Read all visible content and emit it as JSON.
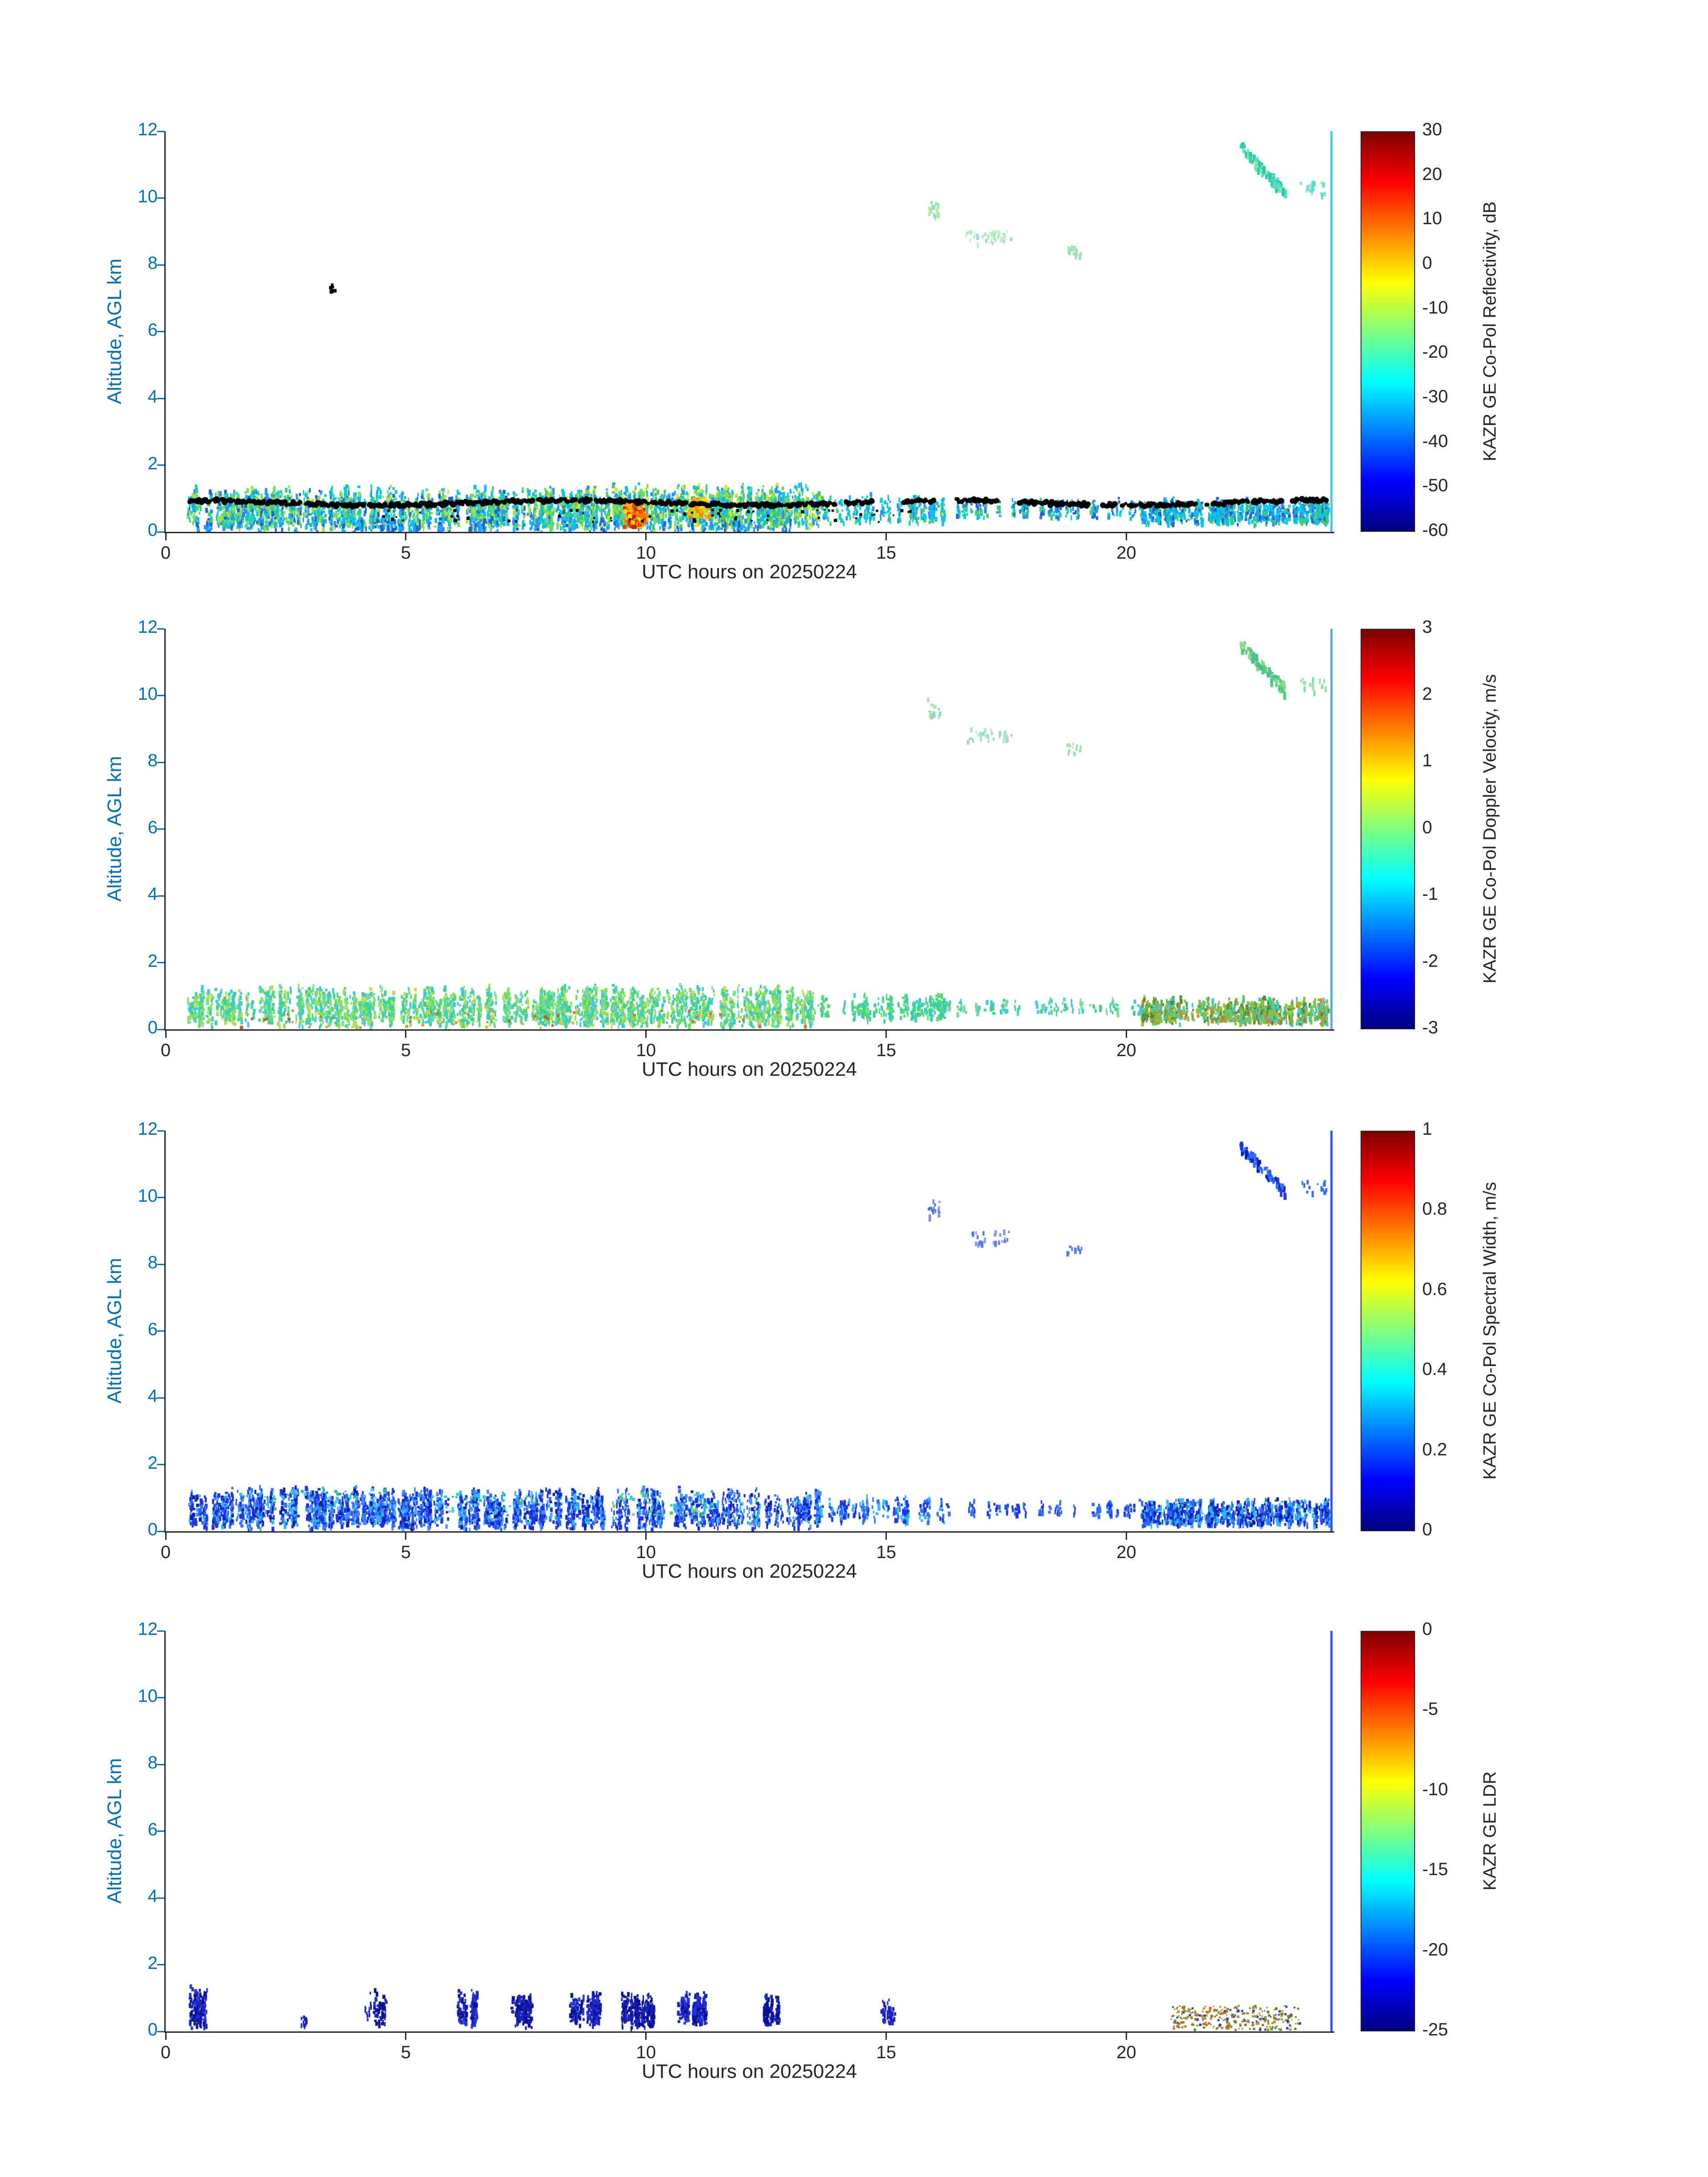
{
  "figure": {
    "background": "#ffffff",
    "axis_text_color": "#262626",
    "y_axis_color": "#0072bd",
    "colormap_stops": [
      "#7f0000 0%",
      "#ff0000 12.5%",
      "#ffff00 37.5%",
      "#00ffff 62.5%",
      "#0000ff 87.5%",
      "#00007f 100%"
    ]
  },
  "chart_data": [
    {
      "type": "heatmap",
      "colorbar_label": "KAZR GE Co-Pol Reflectivity, dB",
      "colorbar_ticks": [
        "30",
        "20",
        "10",
        "0",
        "-10",
        "-20",
        "-30",
        "-40",
        "-50",
        "-60"
      ],
      "clim": [
        -60,
        30
      ],
      "xlabel": "UTC hours on 20250224",
      "ylabel": "Altitude, AGL km",
      "xlim": [
        0,
        24.3
      ],
      "ylim": [
        0,
        12
      ],
      "x_ticks": [
        0,
        5,
        10,
        15,
        20
      ],
      "y_ticks": [
        0,
        2,
        4,
        6,
        8,
        10,
        12
      ],
      "features": [
        {
          "kind": "columns",
          "t": [
            0.45,
            8.3
          ],
          "alt": [
            0.12,
            1.45
          ],
          "count": 240,
          "colors": [
            "#00d0d0",
            "#3fcf6e",
            "#7fdd3f",
            "#2b8cff",
            "#1f5fd0",
            "#00bfff",
            "#57d98f",
            "#a8e03a"
          ]
        },
        {
          "kind": "columns",
          "t": [
            8.3,
            13.6
          ],
          "alt": [
            0.12,
            1.5
          ],
          "count": 200,
          "colors": [
            "#00d0d0",
            "#44cc55",
            "#88dd33",
            "#dde822",
            "#2b8cff",
            "#00bfff",
            "#57d98f"
          ]
        },
        {
          "kind": "speckle",
          "t": [
            9.5,
            9.95
          ],
          "alt": [
            0.2,
            0.95
          ],
          "count": 110,
          "size": 7,
          "colors": [
            "#ffb000",
            "#ff7700",
            "#ffdd00",
            "#ff3b00",
            "#c22800"
          ]
        },
        {
          "kind": "speckle",
          "t": [
            10.85,
            11.3
          ],
          "alt": [
            0.45,
            1.05
          ],
          "count": 80,
          "size": 7,
          "colors": [
            "#ffdd00",
            "#ffb000",
            "#aadd22",
            "#ff8800"
          ]
        },
        {
          "kind": "columns",
          "t": [
            13.6,
            16.2
          ],
          "alt": [
            0.3,
            1.2
          ],
          "count": 50,
          "colors": [
            "#00d0d0",
            "#3fcf6e",
            "#2b8cff",
            "#00bfff"
          ]
        },
        {
          "kind": "columns",
          "t": [
            16.2,
            20.3
          ],
          "alt": [
            0.45,
            1.05
          ],
          "count": 55,
          "colors": [
            "#00d0d0",
            "#2b8cff",
            "#3fcf6e",
            "#1f5fd0"
          ]
        },
        {
          "kind": "columns",
          "t": [
            20.3,
            24.2
          ],
          "alt": [
            0.25,
            1.1
          ],
          "count": 160,
          "colors": [
            "#2b8cff",
            "#00bfff",
            "#00d0d0",
            "#1f5fd0",
            "#3fcf6e"
          ]
        },
        {
          "kind": "columns",
          "t": [
            0.5,
            13.5
          ],
          "alt": [
            0.02,
            0.5
          ],
          "count": 90,
          "colors": [
            "#2b8cff",
            "#1f5fd0",
            "#00bfff"
          ]
        },
        {
          "kind": "speckle",
          "t": [
            4.5,
            16.5
          ],
          "alt": [
            0.3,
            0.7
          ],
          "count": 60,
          "size": 5,
          "colors": [
            "#000000"
          ]
        },
        {
          "kind": "speckle",
          "t": [
            3.38,
            3.52
          ],
          "alt": [
            7.2,
            7.55
          ],
          "count": 6,
          "size": 6,
          "colors": [
            "#000000"
          ]
        },
        {
          "kind": "dotline",
          "t": [
            0.5,
            24.2
          ],
          "base": 0.87,
          "amp": 0.07,
          "jitter": 0.05,
          "r": 5,
          "color": "#000000",
          "gaps": [
            [
              13.95,
              14.15
            ],
            [
              14.75,
              15.35
            ],
            [
              16.05,
              16.45
            ],
            [
              17.35,
              17.75
            ],
            [
              19.25,
              19.5
            ],
            [
              21.45,
              21.65
            ],
            [
              23.25,
              23.45
            ]
          ]
        },
        {
          "kind": "streak",
          "t": [
            15.85,
            16.1
          ],
          "alt": [
            9.4,
            9.95
          ],
          "count": 22,
          "size": 4,
          "colors": [
            "#7fe0c0",
            "#a8e8a0"
          ]
        },
        {
          "kind": "streak",
          "t": [
            16.65,
            17.6
          ],
          "alt": [
            8.65,
            9.05
          ],
          "count": 40,
          "size": 4,
          "colors": [
            "#aee8b8",
            "#8fd8d8",
            "#bfeec8"
          ]
        },
        {
          "kind": "streak",
          "t": [
            18.75,
            19.05
          ],
          "alt": [
            8.3,
            8.6
          ],
          "count": 16,
          "size": 4,
          "colors": [
            "#9fe0b8"
          ]
        },
        {
          "kind": "streak",
          "t": [
            22.35,
            23.3
          ],
          "alt": [
            10.2,
            11.6
          ],
          "count": 90,
          "size": 5,
          "diag": true,
          "colors": [
            "#27c9a8",
            "#55ddcc",
            "#7fe8b0",
            "#3fcf9e"
          ]
        },
        {
          "kind": "streak",
          "t": [
            23.6,
            24.15
          ],
          "alt": [
            10.15,
            10.55
          ],
          "count": 22,
          "size": 4,
          "colors": [
            "#55ddcc",
            "#88e8c8"
          ]
        },
        {
          "kind": "vline",
          "t": 24.27,
          "alt": [
            0,
            12
          ],
          "w": 5,
          "color": "#3fc8e8"
        }
      ]
    },
    {
      "type": "heatmap",
      "colorbar_label": "KAZR GE Co-Pol Doppler Velocity, m/s",
      "colorbar_ticks": [
        "3",
        "2",
        "1",
        "0",
        "-1",
        "-2",
        "-3"
      ],
      "clim": [
        -3,
        3
      ],
      "xlabel": "UTC hours on 20250224",
      "ylabel": "Altitude, AGL km",
      "xlim": [
        0,
        24.3
      ],
      "ylim": [
        0,
        12
      ],
      "x_ticks": [
        0,
        5,
        10,
        15,
        20
      ],
      "y_ticks": [
        0,
        2,
        4,
        6,
        8,
        10,
        12
      ],
      "features": [
        {
          "kind": "columns",
          "t": [
            0.45,
            13.6
          ],
          "alt": [
            0.1,
            1.4
          ],
          "count": 340,
          "colors": [
            "#3ecf8e",
            "#2fd0c0",
            "#55dd66",
            "#88e055",
            "#44c8e0",
            "#77dd99",
            "#b8e04e"
          ]
        },
        {
          "kind": "speckle",
          "t": [
            1.5,
            13.5
          ],
          "alt": [
            0.08,
            0.6
          ],
          "count": 70,
          "size": 5,
          "colors": [
            "#e0a030",
            "#cc7722",
            "#d8c830",
            "#b86018"
          ]
        },
        {
          "kind": "columns",
          "t": [
            13.6,
            16.2
          ],
          "alt": [
            0.3,
            1.15
          ],
          "count": 45,
          "colors": [
            "#3ecf8e",
            "#55dd66",
            "#2fd0c0"
          ]
        },
        {
          "kind": "columns",
          "t": [
            16.2,
            20.3
          ],
          "alt": [
            0.5,
            1.0
          ],
          "count": 40,
          "colors": [
            "#3ecf8e",
            "#77dd99",
            "#44c8e0"
          ]
        },
        {
          "kind": "columns",
          "t": [
            20.3,
            24.2
          ],
          "alt": [
            0.2,
            1.05
          ],
          "count": 170,
          "colors": [
            "#55aa44",
            "#77cc44",
            "#3ecf8e",
            "#99bb33",
            "#558833",
            "#cc8833",
            "#44c8e0"
          ]
        },
        {
          "kind": "streak",
          "t": [
            15.85,
            16.1
          ],
          "alt": [
            9.4,
            9.95
          ],
          "count": 18,
          "size": 4,
          "colors": [
            "#8fd8b8",
            "#a8e8a0"
          ]
        },
        {
          "kind": "streak",
          "t": [
            16.65,
            17.6
          ],
          "alt": [
            8.65,
            9.05
          ],
          "count": 30,
          "size": 4,
          "colors": [
            "#aee8b8",
            "#9fd8c8"
          ]
        },
        {
          "kind": "streak",
          "t": [
            18.75,
            19.05
          ],
          "alt": [
            8.3,
            8.6
          ],
          "count": 12,
          "size": 4,
          "colors": [
            "#9fe0a8"
          ]
        },
        {
          "kind": "streak",
          "t": [
            22.35,
            23.3
          ],
          "alt": [
            10.2,
            11.6
          ],
          "count": 80,
          "size": 5,
          "diag": true,
          "colors": [
            "#55cc77",
            "#88dd88",
            "#44bb99"
          ]
        },
        {
          "kind": "streak",
          "t": [
            23.6,
            24.15
          ],
          "alt": [
            10.15,
            10.55
          ],
          "count": 18,
          "size": 4,
          "colors": [
            "#77dd99",
            "#99e8a8"
          ]
        },
        {
          "kind": "vline",
          "t": 24.27,
          "alt": [
            0,
            12
          ],
          "w": 5,
          "color": "#55aadd"
        }
      ]
    },
    {
      "type": "heatmap",
      "colorbar_label": "KAZR GE Co-Pol Spectral Width, m/s",
      "colorbar_ticks": [
        "1",
        "0.8",
        "0.6",
        "0.4",
        "0.2",
        "0"
      ],
      "clim": [
        0,
        1
      ],
      "xlabel": "UTC hours on 20250224",
      "ylabel": "Altitude, AGL km",
      "xlim": [
        0,
        24.3
      ],
      "ylim": [
        0,
        12
      ],
      "x_ticks": [
        0,
        5,
        10,
        15,
        20
      ],
      "y_ticks": [
        0,
        2,
        4,
        6,
        8,
        10,
        12
      ],
      "features": [
        {
          "kind": "columns",
          "t": [
            0.45,
            13.6
          ],
          "alt": [
            0.1,
            1.4
          ],
          "count": 330,
          "colors": [
            "#1a35e8",
            "#2b6cff",
            "#0a1fb0",
            "#2bb8ff",
            "#4488ff",
            "#1a35e8"
          ]
        },
        {
          "kind": "speckle",
          "t": [
            2.0,
            4.8
          ],
          "alt": [
            0.7,
            1.3
          ],
          "count": 50,
          "size": 5,
          "colors": [
            "#22ccdd",
            "#33bb88",
            "#55c8ff"
          ]
        },
        {
          "kind": "speckle",
          "t": [
            5.5,
            7.6
          ],
          "alt": [
            0.6,
            1.2
          ],
          "count": 35,
          "size": 5,
          "colors": [
            "#22ccdd",
            "#55c8ff",
            "#33bb88"
          ]
        },
        {
          "kind": "speckle",
          "t": [
            9.3,
            11.3
          ],
          "alt": [
            0.5,
            1.2
          ],
          "count": 55,
          "size": 5,
          "colors": [
            "#22ccdd",
            "#44cc66",
            "#88dd44",
            "#55c8ff"
          ]
        },
        {
          "kind": "columns",
          "t": [
            13.6,
            16.2
          ],
          "alt": [
            0.3,
            1.15
          ],
          "count": 40,
          "colors": [
            "#1a35e8",
            "#2b6cff",
            "#2bb8ff"
          ]
        },
        {
          "kind": "columns",
          "t": [
            16.2,
            20.3
          ],
          "alt": [
            0.5,
            1.0
          ],
          "count": 40,
          "colors": [
            "#1a35e8",
            "#2b6cff"
          ]
        },
        {
          "kind": "columns",
          "t": [
            20.3,
            24.2
          ],
          "alt": [
            0.2,
            1.05
          ],
          "count": 170,
          "colors": [
            "#1a35e8",
            "#2b6cff",
            "#0a1fb0",
            "#2bb8ff"
          ]
        },
        {
          "kind": "streak",
          "t": [
            15.85,
            16.1
          ],
          "alt": [
            9.4,
            9.95
          ],
          "count": 14,
          "size": 4,
          "colors": [
            "#4466ee",
            "#7788ee"
          ]
        },
        {
          "kind": "streak",
          "t": [
            16.65,
            17.6
          ],
          "alt": [
            8.65,
            9.05
          ],
          "count": 24,
          "size": 4,
          "colors": [
            "#5577ee",
            "#8899ee"
          ]
        },
        {
          "kind": "streak",
          "t": [
            18.75,
            19.05
          ],
          "alt": [
            8.3,
            8.6
          ],
          "count": 10,
          "size": 4,
          "colors": [
            "#5577ee"
          ]
        },
        {
          "kind": "streak",
          "t": [
            22.35,
            23.3
          ],
          "alt": [
            10.2,
            11.6
          ],
          "count": 80,
          "size": 5,
          "diag": true,
          "colors": [
            "#1a35e8",
            "#0a1fb0",
            "#2b6cff"
          ]
        },
        {
          "kind": "streak",
          "t": [
            23.6,
            24.15
          ],
          "alt": [
            10.15,
            10.55
          ],
          "count": 16,
          "size": 4,
          "colors": [
            "#2b6cff",
            "#4466ee"
          ]
        },
        {
          "kind": "vline",
          "t": 24.27,
          "alt": [
            0,
            12
          ],
          "w": 5,
          "color": "#2b4fff"
        }
      ]
    },
    {
      "type": "heatmap",
      "colorbar_label": "KAZR GE LDR",
      "colorbar_ticks": [
        "0",
        "-5",
        "-10",
        "-15",
        "-20",
        "-25"
      ],
      "clim": [
        -25,
        0
      ],
      "xlabel": "UTC hours on 20250224",
      "ylabel": "Altitude, AGL km",
      "xlim": [
        0,
        24.3
      ],
      "ylim": [
        0,
        12
      ],
      "x_ticks": [
        0,
        5,
        10,
        15,
        20
      ],
      "y_ticks": [
        0,
        2,
        4,
        6,
        8,
        10,
        12
      ],
      "features": [
        {
          "kind": "columns",
          "t": [
            0.5,
            0.82
          ],
          "alt": [
            0.1,
            1.45
          ],
          "count": 20,
          "colors": [
            "#0a1090",
            "#1a22c0",
            "#2233dd"
          ]
        },
        {
          "kind": "columns",
          "t": [
            2.82,
            2.98
          ],
          "alt": [
            0.15,
            0.6
          ],
          "count": 4,
          "colors": [
            "#1a22c0"
          ]
        },
        {
          "kind": "columns",
          "t": [
            4.15,
            4.55
          ],
          "alt": [
            0.2,
            1.3
          ],
          "count": 10,
          "colors": [
            "#0a1090",
            "#1a22c0"
          ]
        },
        {
          "kind": "columns",
          "t": [
            6.05,
            6.45
          ],
          "alt": [
            0.2,
            1.35
          ],
          "count": 14,
          "colors": [
            "#0a1090",
            "#1a22c0",
            "#2233dd"
          ]
        },
        {
          "kind": "columns",
          "t": [
            7.15,
            7.6
          ],
          "alt": [
            0.15,
            1.3
          ],
          "count": 16,
          "colors": [
            "#0a1090",
            "#1a22c0"
          ]
        },
        {
          "kind": "columns",
          "t": [
            8.35,
            9.05
          ],
          "alt": [
            0.2,
            1.3
          ],
          "count": 26,
          "colors": [
            "#0a1090",
            "#1a22c0",
            "#2233dd"
          ]
        },
        {
          "kind": "columns",
          "t": [
            9.45,
            10.15
          ],
          "alt": [
            0.15,
            1.25
          ],
          "count": 36,
          "colors": [
            "#0a1090",
            "#1a22c0"
          ]
        },
        {
          "kind": "columns",
          "t": [
            10.65,
            11.25
          ],
          "alt": [
            0.2,
            1.3
          ],
          "count": 32,
          "colors": [
            "#0a1090",
            "#1a22c0",
            "#2233dd"
          ]
        },
        {
          "kind": "columns",
          "t": [
            12.4,
            12.75
          ],
          "alt": [
            0.2,
            1.2
          ],
          "count": 14,
          "colors": [
            "#0a1090",
            "#1a22c0"
          ]
        },
        {
          "kind": "columns",
          "t": [
            14.9,
            15.15
          ],
          "alt": [
            0.3,
            1.0
          ],
          "count": 8,
          "colors": [
            "#1a22c0"
          ]
        },
        {
          "kind": "speckle",
          "t": [
            20.9,
            23.6
          ],
          "alt": [
            0.08,
            0.8
          ],
          "count": 280,
          "size": 4,
          "colors": [
            "#707818",
            "#8a8a22",
            "#558833",
            "#bb8822",
            "#cc6611",
            "#2233cc",
            "#9a9a2a"
          ]
        },
        {
          "kind": "vline",
          "t": 24.27,
          "alt": [
            0,
            12
          ],
          "w": 5,
          "color": "#2b4fff"
        }
      ]
    }
  ]
}
